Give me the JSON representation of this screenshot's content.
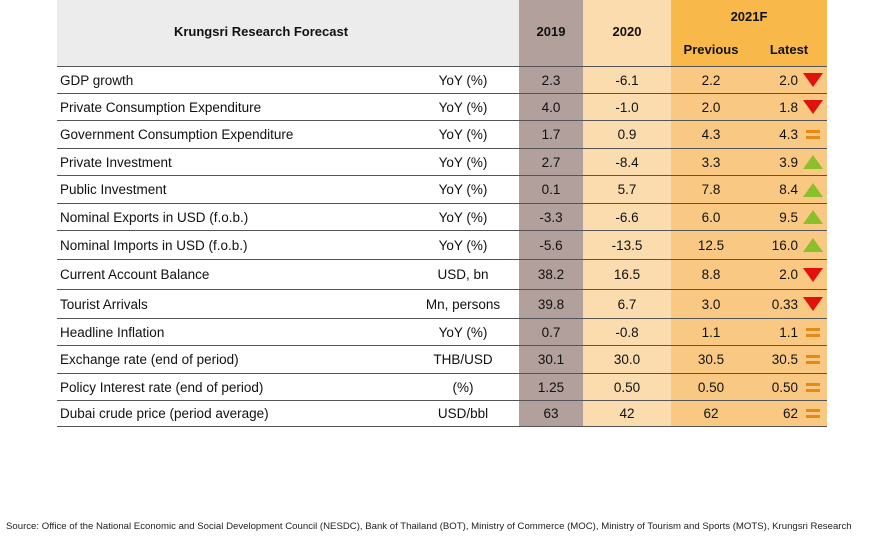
{
  "header": {
    "title": "Krungsri Research Forecast",
    "y2019": "2019",
    "y2020": "2020",
    "forecast": "2021F",
    "previous": "Previous",
    "latest": "Latest"
  },
  "rows": [
    {
      "label": "GDP growth",
      "unit": "YoY (%)",
      "y2019": "2.3",
      "y2020": "-6.1",
      "previous": "2.2",
      "latest": "2.0",
      "trend": "down-arrow-icon"
    },
    {
      "label": "Private Consumption Expenditure",
      "unit": "YoY (%)",
      "y2019": "4.0",
      "y2020": "-1.0",
      "previous": "2.0",
      "latest": "1.8",
      "trend": "down-arrow-icon"
    },
    {
      "label": "Government Consumption Expenditure",
      "unit": "YoY (%)",
      "y2019": "1.7",
      "y2020": "0.9",
      "previous": "4.3",
      "latest": "4.3",
      "trend": "equal-icon"
    },
    {
      "label": "Private Investment",
      "unit": "YoY (%)",
      "y2019": "2.7",
      "y2020": "-8.4",
      "previous": "3.3",
      "latest": "3.9",
      "trend": "up-arrow-icon"
    },
    {
      "label": "Public Investment",
      "unit": "YoY (%)",
      "y2019": "0.1",
      "y2020": "5.7",
      "previous": "7.8",
      "latest": "8.4",
      "trend": "up-arrow-icon"
    },
    {
      "label": "Nominal Exports in USD (f.o.b.)",
      "unit": "YoY (%)",
      "y2019": "-3.3",
      "y2020": "-6.6",
      "previous": "6.0",
      "latest": "9.5",
      "trend": "up-arrow-icon"
    },
    {
      "label": "Nominal Imports in USD (f.o.b.)",
      "unit": "YoY (%)",
      "y2019": "-5.6",
      "y2020": "-13.5",
      "previous": "12.5",
      "latest": "16.0",
      "trend": "up-arrow-icon"
    },
    {
      "label": "Current Account Balance",
      "unit": "USD, bn",
      "y2019": "38.2",
      "y2020": "16.5",
      "previous": "8.8",
      "latest": "2.0",
      "trend": "down-arrow-icon"
    },
    {
      "label": "Tourist Arrivals",
      "unit": "Mn, persons",
      "y2019": "39.8",
      "y2020": "6.7",
      "previous": "3.0",
      "latest": "0.33",
      "trend": "down-arrow-icon"
    },
    {
      "label": "Headline Inflation",
      "unit": "YoY (%)",
      "y2019": "0.7",
      "y2020": "-0.8",
      "previous": "1.1",
      "latest": "1.1",
      "trend": "equal-icon"
    },
    {
      "label": "Exchange rate (end of period)",
      "unit": "THB/USD",
      "y2019": "30.1",
      "y2020": "30.0",
      "previous": "30.5",
      "latest": "30.5",
      "trend": "equal-icon"
    },
    {
      "label": "Policy Interest rate (end of period)",
      "unit": "(%)",
      "y2019": "1.25",
      "y2020": "0.50",
      "previous": "0.50",
      "latest": "0.50",
      "trend": "equal-icon"
    },
    {
      "label": "Dubai crude price (period average)",
      "unit": "USD/bbl",
      "y2019": "63",
      "y2020": "42",
      "previous": "62",
      "latest": "62",
      "trend": "equal-icon"
    }
  ],
  "source": "Source: Office of the National Economic and Social Development Council (NESDC), Bank of Thailand (BOT), Ministry of Commerce (MOC), Ministry of Tourism and Sports (MOTS), Krungsri Research"
}
